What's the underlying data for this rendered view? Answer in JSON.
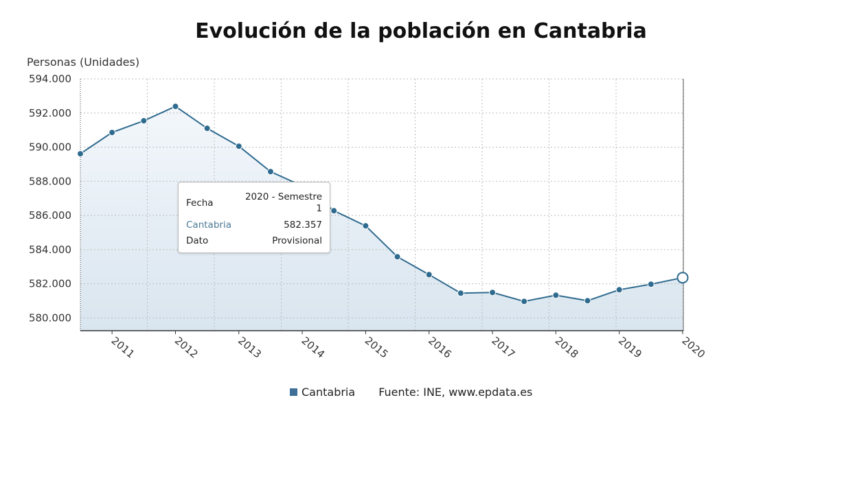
{
  "chart_data": {
    "type": "area",
    "title": "Evolución de la población en Cantabria",
    "ylabel": "Personas (Unidades)",
    "xlabel": "",
    "ylim": [
      579250,
      594000
    ],
    "yticks": [
      "580.000",
      "582.000",
      "584.000",
      "586.000",
      "588.000",
      "590.000",
      "592.000",
      "594.000"
    ],
    "ytick_values": [
      580000,
      582000,
      584000,
      586000,
      588000,
      590000,
      592000,
      594000
    ],
    "xticks": [
      "2011",
      "2012",
      "2013",
      "2014",
      "2015",
      "2016",
      "2017",
      "2018",
      "2019",
      "2020"
    ],
    "grid": true,
    "legend_position": "bottom",
    "series": [
      {
        "name": "Cantabria",
        "color": "#2f6b8f",
        "x": [
          "2010 - Semestre 2",
          "2011 - Semestre 1",
          "2011 - Semestre 2",
          "2012 - Semestre 1",
          "2012 - Semestre 2",
          "2013 - Semestre 1",
          "2013 - Semestre 2",
          "2014 - Semestre 1",
          "2014 - Semestre 2",
          "2015 - Semestre 1",
          "2015 - Semestre 2",
          "2016 - Semestre 1",
          "2016 - Semestre 2",
          "2017 - Semestre 1",
          "2017 - Semestre 2",
          "2018 - Semestre 1",
          "2018 - Semestre 2",
          "2019 - Semestre 1",
          "2019 - Semestre 2",
          "2020 - Semestre 1"
        ],
        "values": [
          589615,
          590862,
          591546,
          592391,
          591104,
          590058,
          588569,
          587725,
          586277,
          585392,
          583582,
          582535,
          581449,
          581490,
          580967,
          581329,
          581007,
          581650,
          581972,
          582357
        ]
      }
    ],
    "source": "Fuente: INE, www.epdata.es"
  },
  "tooltip": {
    "fecha_label": "Fecha",
    "fecha_value": "2020 - Semestre 1",
    "series_label": "Cantabria",
    "series_value": "582.357",
    "dato_label": "Dato",
    "dato_value": "Provisional"
  },
  "legend": {
    "label": "Cantabria",
    "source": "Fuente: INE, www.epdata.es"
  }
}
